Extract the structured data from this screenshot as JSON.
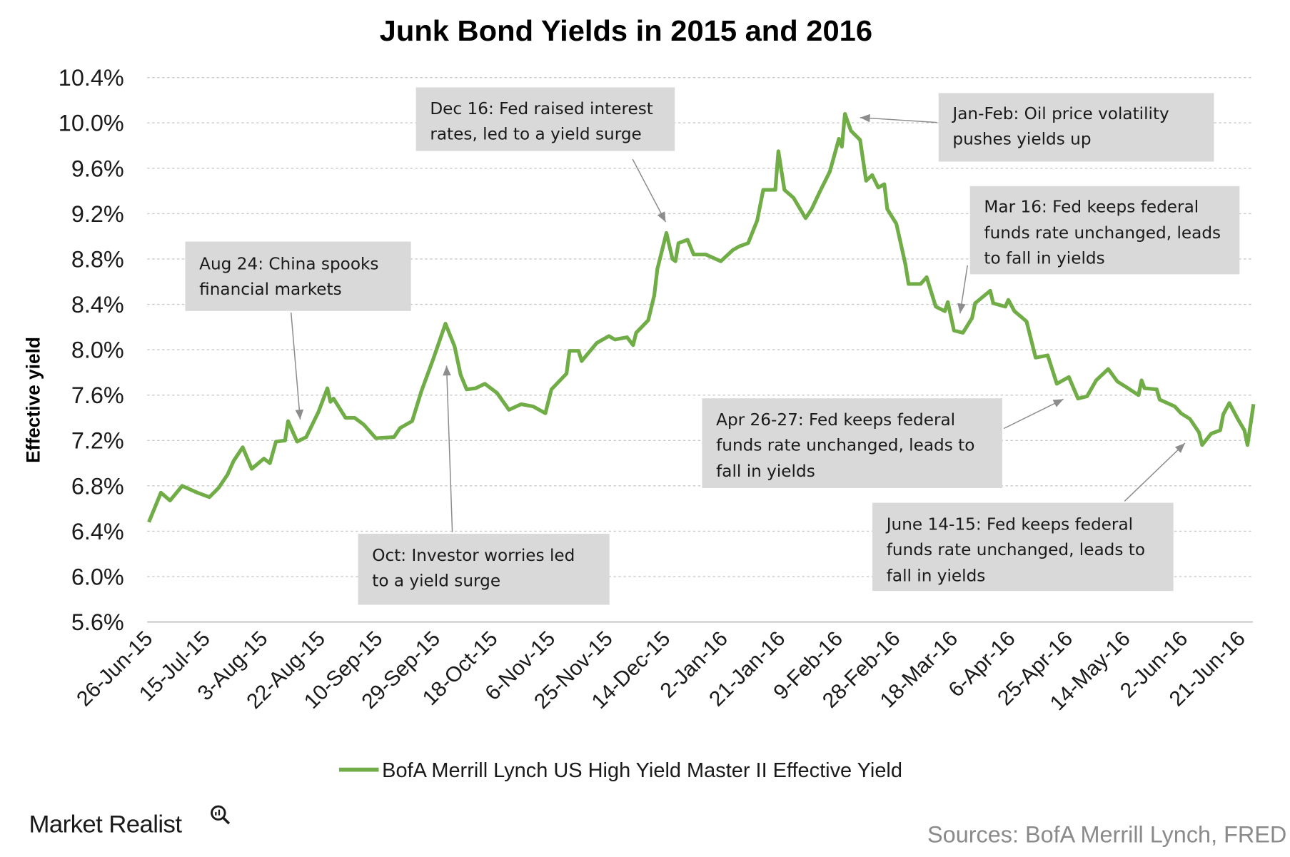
{
  "chart_data": {
    "type": "line",
    "title": "Junk Bond Yields in 2015 and 2016",
    "ylabel": "Effective yield",
    "xlabel": "",
    "ylim": [
      5.6,
      10.4
    ],
    "y_ticks": [
      "10.4%",
      "10.0%",
      "9.6%",
      "9.2%",
      "8.8%",
      "8.4%",
      "8.0%",
      "7.6%",
      "7.2%",
      "6.8%",
      "6.4%",
      "6.0%",
      "5.6%"
    ],
    "x_ticks": [
      "26-Jun-15",
      "15-Jul-15",
      "3-Aug-15",
      "22-Aug-15",
      "10-Sep-15",
      "29-Sep-15",
      "18-Oct-15",
      "6-Nov-15",
      "25-Nov-15",
      "14-Dec-15",
      "2-Jan-16",
      "21-Jan-16",
      "9-Feb-16",
      "28-Feb-16",
      "18-Mar-16",
      "6-Apr-16",
      "25-Apr-16",
      "14-May-16",
      "2-Jun-16",
      "21-Jun-16"
    ],
    "xlim": [
      "2015-06-26",
      "2016-06-25"
    ],
    "grid": "horizontal dashed",
    "legend_position": "bottom",
    "series": [
      {
        "name": "BofA Merrill Lynch US High Yield Master II Effective Yield",
        "color": "#70ad47",
        "points": [
          [
            "2015-06-26",
            6.48
          ],
          [
            "2015-06-30",
            6.74
          ],
          [
            "2015-07-03",
            6.67
          ],
          [
            "2015-07-07",
            6.8
          ],
          [
            "2015-07-12",
            6.74
          ],
          [
            "2015-07-16",
            6.7
          ],
          [
            "2015-07-19",
            6.78
          ],
          [
            "2015-07-22",
            6.9
          ],
          [
            "2015-07-24",
            7.02
          ],
          [
            "2015-07-27",
            7.14
          ],
          [
            "2015-07-30",
            6.95
          ],
          [
            "2015-08-03",
            7.04
          ],
          [
            "2015-08-05",
            7.0
          ],
          [
            "2015-08-07",
            7.19
          ],
          [
            "2015-08-10",
            7.2
          ],
          [
            "2015-08-11",
            7.37
          ],
          [
            "2015-08-14",
            7.19
          ],
          [
            "2015-08-17",
            7.23
          ],
          [
            "2015-08-21",
            7.45
          ],
          [
            "2015-08-24",
            7.66
          ],
          [
            "2015-08-25",
            7.54
          ],
          [
            "2015-08-26",
            7.57
          ],
          [
            "2015-08-30",
            7.4
          ],
          [
            "2015-09-02",
            7.4
          ],
          [
            "2015-09-05",
            7.34
          ],
          [
            "2015-09-09",
            7.22
          ],
          [
            "2015-09-15",
            7.23
          ],
          [
            "2015-09-17",
            7.31
          ],
          [
            "2015-09-21",
            7.37
          ],
          [
            "2015-09-24",
            7.63
          ],
          [
            "2015-09-28",
            7.92
          ],
          [
            "2015-10-02",
            8.23
          ],
          [
            "2015-10-05",
            8.03
          ],
          [
            "2015-10-07",
            7.78
          ],
          [
            "2015-10-09",
            7.65
          ],
          [
            "2015-10-12",
            7.66
          ],
          [
            "2015-10-15",
            7.7
          ],
          [
            "2015-10-19",
            7.62
          ],
          [
            "2015-10-23",
            7.47
          ],
          [
            "2015-10-27",
            7.52
          ],
          [
            "2015-10-31",
            7.5
          ],
          [
            "2015-11-04",
            7.44
          ],
          [
            "2015-11-06",
            7.65
          ],
          [
            "2015-11-11",
            7.79
          ],
          [
            "2015-11-12",
            7.99
          ],
          [
            "2015-11-15",
            7.99
          ],
          [
            "2015-11-16",
            7.9
          ],
          [
            "2015-11-21",
            8.06
          ],
          [
            "2015-11-25",
            8.12
          ],
          [
            "2015-11-27",
            8.09
          ],
          [
            "2015-12-01",
            8.11
          ],
          [
            "2015-12-03",
            8.04
          ],
          [
            "2015-12-04",
            8.15
          ],
          [
            "2015-12-08",
            8.26
          ],
          [
            "2015-12-10",
            8.48
          ],
          [
            "2015-12-11",
            8.71
          ],
          [
            "2015-12-14",
            9.03
          ],
          [
            "2015-12-16",
            8.8
          ],
          [
            "2015-12-17",
            8.78
          ],
          [
            "2015-12-18",
            8.94
          ],
          [
            "2015-12-21",
            8.97
          ],
          [
            "2015-12-23",
            8.84
          ],
          [
            "2015-12-27",
            8.84
          ],
          [
            "2016-01-01",
            8.78
          ],
          [
            "2016-01-05",
            8.88
          ],
          [
            "2016-01-07",
            8.91
          ],
          [
            "2016-01-10",
            8.94
          ],
          [
            "2016-01-13",
            9.14
          ],
          [
            "2016-01-15",
            9.41
          ],
          [
            "2016-01-19",
            9.41
          ],
          [
            "2016-01-20",
            9.75
          ],
          [
            "2016-01-22",
            9.41
          ],
          [
            "2016-01-25",
            9.34
          ],
          [
            "2016-01-29",
            9.16
          ],
          [
            "2016-01-31",
            9.24
          ],
          [
            "2016-02-03",
            9.41
          ],
          [
            "2016-02-06",
            9.57
          ],
          [
            "2016-02-09",
            9.86
          ],
          [
            "2016-02-10",
            9.79
          ],
          [
            "2016-02-11",
            10.08
          ],
          [
            "2016-02-13",
            9.93
          ],
          [
            "2016-02-16",
            9.85
          ],
          [
            "2016-02-18",
            9.49
          ],
          [
            "2016-02-20",
            9.54
          ],
          [
            "2016-02-22",
            9.43
          ],
          [
            "2016-02-24",
            9.46
          ],
          [
            "2016-02-25",
            9.24
          ],
          [
            "2016-02-28",
            9.11
          ],
          [
            "2016-03-02",
            8.75
          ],
          [
            "2016-03-03",
            8.58
          ],
          [
            "2016-03-07",
            8.58
          ],
          [
            "2016-03-09",
            8.64
          ],
          [
            "2016-03-12",
            8.38
          ],
          [
            "2016-03-15",
            8.34
          ],
          [
            "2016-03-16",
            8.42
          ],
          [
            "2016-03-18",
            8.17
          ],
          [
            "2016-03-21",
            8.15
          ],
          [
            "2016-03-24",
            8.28
          ],
          [
            "2016-03-25",
            8.41
          ],
          [
            "2016-03-30",
            8.52
          ],
          [
            "2016-03-31",
            8.41
          ],
          [
            "2016-04-04",
            8.38
          ],
          [
            "2016-04-05",
            8.44
          ],
          [
            "2016-04-07",
            8.34
          ],
          [
            "2016-04-11",
            8.25
          ],
          [
            "2016-04-14",
            7.93
          ],
          [
            "2016-04-18",
            7.95
          ],
          [
            "2016-04-21",
            7.7
          ],
          [
            "2016-04-25",
            7.76
          ],
          [
            "2016-04-28",
            7.57
          ],
          [
            "2016-05-01",
            7.59
          ],
          [
            "2016-05-04",
            7.73
          ],
          [
            "2016-05-08",
            7.83
          ],
          [
            "2016-05-11",
            7.72
          ],
          [
            "2016-05-14",
            7.67
          ],
          [
            "2016-05-18",
            7.6
          ],
          [
            "2016-05-19",
            7.73
          ],
          [
            "2016-05-20",
            7.66
          ],
          [
            "2016-05-24",
            7.65
          ],
          [
            "2016-05-25",
            7.56
          ],
          [
            "2016-05-30",
            7.5
          ],
          [
            "2016-06-01",
            7.44
          ],
          [
            "2016-06-04",
            7.39
          ],
          [
            "2016-06-07",
            7.27
          ],
          [
            "2016-06-08",
            7.16
          ],
          [
            "2016-06-11",
            7.26
          ],
          [
            "2016-06-14",
            7.29
          ],
          [
            "2016-06-15",
            7.43
          ],
          [
            "2016-06-17",
            7.53
          ],
          [
            "2016-06-20",
            7.38
          ],
          [
            "2016-06-22",
            7.29
          ],
          [
            "2016-06-23",
            7.16
          ],
          [
            "2016-06-25",
            7.52
          ]
        ]
      }
    ],
    "annotations": [
      {
        "lines": [
          "Dec 16: Fed raised interest",
          "rates, led to a yield surge"
        ]
      },
      {
        "lines": [
          "Jan-Feb: Oil price volatility",
          "pushes yields up"
        ]
      },
      {
        "lines": [
          "Mar 16: Fed keeps federal",
          "funds rate unchanged, leads",
          "to fall in yields"
        ]
      },
      {
        "lines": [
          "Aug 24: China spooks",
          "financial markets"
        ]
      },
      {
        "lines": [
          "Apr 26-27: Fed keeps federal",
          "funds rate unchanged, leads to",
          "fall in yields"
        ]
      },
      {
        "lines": [
          "Oct: Investor worries led",
          "to a yield surge"
        ]
      },
      {
        "lines": [
          "June 14-15: Fed keeps federal",
          "funds rate unchanged, leads to",
          "fall in yields"
        ]
      }
    ]
  },
  "branding": {
    "logo": "Market Realist",
    "logo_icon": "magnifier-chart-icon"
  },
  "source": "Sources: BofA Merrill Lynch, FRED"
}
